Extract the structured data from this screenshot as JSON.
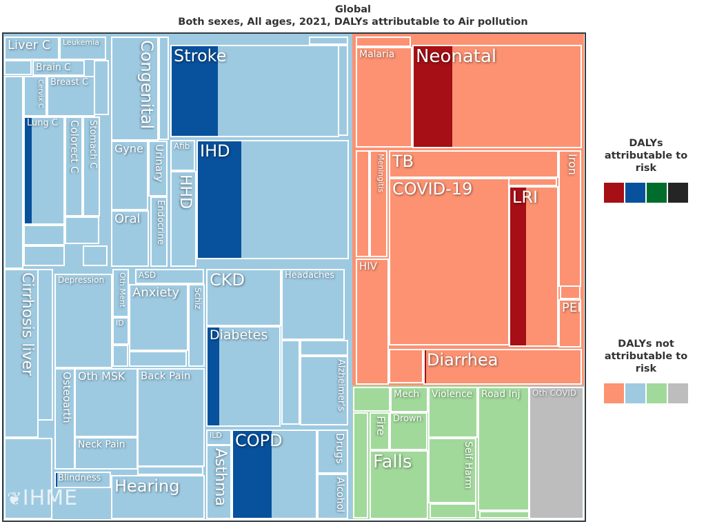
{
  "chart_data": {
    "type": "treemap",
    "title": "Global",
    "subtitle": "Both sexes, All ages, 2021, DALYs attributable to Air pollution",
    "groups": [
      {
        "name": "ncd",
        "color_attrib": "#08519c",
        "color_not": "#9ecae1"
      },
      {
        "name": "cmnn",
        "color_attrib": "#a50f15",
        "color_not": "#fc9272"
      },
      {
        "name": "injuries",
        "color_attrib": "#006d2c",
        "color_not": "#a1d99b"
      },
      {
        "name": "other",
        "color_attrib": "#252525",
        "color_not": "#bdbdbd"
      }
    ],
    "items": [
      {
        "label": "Liver C",
        "group": "ncd",
        "attributable_fraction": 0
      },
      {
        "label": "Leukemia",
        "group": "ncd",
        "attributable_fraction": 0
      },
      {
        "label": "Brain C",
        "group": "ncd",
        "attributable_fraction": 0
      },
      {
        "label": "Breast C",
        "group": "ncd",
        "attributable_fraction": 0
      },
      {
        "label": "Cervix C",
        "group": "ncd",
        "attributable_fraction": 0
      },
      {
        "label": "Lung C",
        "group": "ncd",
        "attributable_fraction": 0.18
      },
      {
        "label": "Colorect C",
        "group": "ncd",
        "attributable_fraction": 0
      },
      {
        "label": "Stomach C",
        "group": "ncd",
        "attributable_fraction": 0
      },
      {
        "label": "Congenital",
        "group": "ncd",
        "attributable_fraction": 0
      },
      {
        "label": "Gyne",
        "group": "ncd",
        "attributable_fraction": 0
      },
      {
        "label": "Urinary",
        "group": "ncd",
        "attributable_fraction": 0
      },
      {
        "label": "Oral",
        "group": "ncd",
        "attributable_fraction": 0
      },
      {
        "label": "Endocrine",
        "group": "ncd",
        "attributable_fraction": 0
      },
      {
        "label": "Stroke",
        "group": "ncd",
        "attributable_fraction": 0.28
      },
      {
        "label": "Afib",
        "group": "ncd",
        "attributable_fraction": 0
      },
      {
        "label": "HHD",
        "group": "ncd",
        "attributable_fraction": 0
      },
      {
        "label": "IHD",
        "group": "ncd",
        "attributable_fraction": 0.29
      },
      {
        "label": "Cirrhosis liver",
        "group": "ncd",
        "attributable_fraction": 0
      },
      {
        "label": "Depression",
        "group": "ncd",
        "attributable_fraction": 0
      },
      {
        "label": "Oth Ment",
        "group": "ncd",
        "attributable_fraction": 0
      },
      {
        "label": "ID",
        "group": "ncd",
        "attributable_fraction": 0
      },
      {
        "label": "ASD",
        "group": "ncd",
        "attributable_fraction": 0
      },
      {
        "label": "Anxiety",
        "group": "ncd",
        "attributable_fraction": 0
      },
      {
        "label": "Schiz",
        "group": "ncd",
        "attributable_fraction": 0
      },
      {
        "label": "CKD",
        "group": "ncd",
        "attributable_fraction": 0
      },
      {
        "label": "Headaches",
        "group": "ncd",
        "attributable_fraction": 0
      },
      {
        "label": "Diabetes",
        "group": "ncd",
        "attributable_fraction": 0.16
      },
      {
        "label": "Alzheimer's",
        "group": "ncd",
        "attributable_fraction": 0
      },
      {
        "label": "Osteoarth",
        "group": "ncd",
        "attributable_fraction": 0
      },
      {
        "label": "Oth MSK",
        "group": "ncd",
        "attributable_fraction": 0
      },
      {
        "label": "Back Pain",
        "group": "ncd",
        "attributable_fraction": 0
      },
      {
        "label": "Neck Pain",
        "group": "ncd",
        "attributable_fraction": 0
      },
      {
        "label": "Blindness",
        "group": "ncd",
        "attributable_fraction": 0.03
      },
      {
        "label": "Hearing",
        "group": "ncd",
        "attributable_fraction": 0
      },
      {
        "label": "ILD",
        "group": "ncd",
        "attributable_fraction": 0
      },
      {
        "label": "Asthma",
        "group": "ncd",
        "attributable_fraction": 0
      },
      {
        "label": "COPD",
        "group": "ncd",
        "attributable_fraction": 0.47
      },
      {
        "label": "Drugs",
        "group": "ncd",
        "attributable_fraction": 0
      },
      {
        "label": "Alcohol",
        "group": "ncd",
        "attributable_fraction": 0
      },
      {
        "label": "Malaria",
        "group": "cmnn",
        "attributable_fraction": 0
      },
      {
        "label": "Neonatal",
        "group": "cmnn",
        "attributable_fraction": 0.23
      },
      {
        "label": "TB",
        "group": "cmnn",
        "attributable_fraction": 0
      },
      {
        "label": "Meningitis",
        "group": "cmnn",
        "attributable_fraction": 0
      },
      {
        "label": "COVID-19",
        "group": "cmnn",
        "attributable_fraction": 0
      },
      {
        "label": "LRI",
        "group": "cmnn",
        "attributable_fraction": 0.34
      },
      {
        "label": "Iron",
        "group": "cmnn",
        "attributable_fraction": 0
      },
      {
        "label": "HIV",
        "group": "cmnn",
        "attributable_fraction": 0
      },
      {
        "label": "PEM",
        "group": "cmnn",
        "attributable_fraction": 0
      },
      {
        "label": "Diarrhea",
        "group": "cmnn",
        "attributable_fraction": 0.01
      },
      {
        "label": "Mech",
        "group": "injuries",
        "attributable_fraction": 0
      },
      {
        "label": "Fire",
        "group": "injuries",
        "attributable_fraction": 0
      },
      {
        "label": "Drown",
        "group": "injuries",
        "attributable_fraction": 0
      },
      {
        "label": "Falls",
        "group": "injuries",
        "attributable_fraction": 0
      },
      {
        "label": "Violence",
        "group": "injuries",
        "attributable_fraction": 0
      },
      {
        "label": "Self Harm",
        "group": "injuries",
        "attributable_fraction": 0
      },
      {
        "label": "Road Inj",
        "group": "injuries",
        "attributable_fraction": 0
      },
      {
        "label": "Oth COVID",
        "group": "other",
        "attributable_fraction": 0
      }
    ]
  },
  "legend": {
    "attributable_title": "DALYs attributable to risk",
    "not_attributable_title": "DALYs not attributable to risk",
    "attributable_colors": [
      "#a50f15",
      "#08519c",
      "#006d2c",
      "#252525"
    ],
    "not_attributable_colors": [
      "#fc9272",
      "#9ecae1",
      "#a1d99b",
      "#bdbdbd"
    ]
  },
  "logo": {
    "text": "IHME"
  }
}
